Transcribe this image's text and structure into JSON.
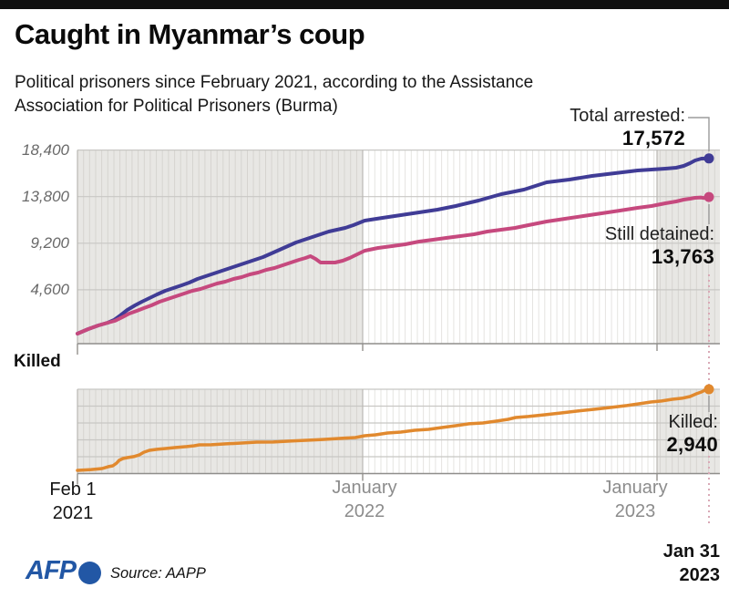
{
  "header": {
    "title": "Caught in Myanmar’s coup",
    "subtitle_lines": [
      "Political prisoners since February 2021, according to the Assistance",
      "Association for Political Prisoners (Burma)"
    ]
  },
  "annotations": {
    "arrested_label": "Total arrested:",
    "arrested_value": "17,572",
    "detained_label": "Still detained:",
    "detained_value": "13,763",
    "killed_label": "Killed:",
    "killed_value": "2,940"
  },
  "sections": {
    "killed_title": "Killed"
  },
  "x_axis": {
    "start": [
      "Feb 1",
      "2021"
    ],
    "jan2022": [
      "January",
      "2022"
    ],
    "jan2023": [
      "January",
      "2023"
    ],
    "final": [
      "Jan 31",
      "2023"
    ]
  },
  "footer": {
    "logo_text": "AFP",
    "source": "Source: AAPP"
  },
  "colors": {
    "arrested_line": "#403c96",
    "detained_line": "#c6497e",
    "killed_line": "#e1892e",
    "afp_blue": "#2257a5"
  },
  "chart_data": {
    "type": "line",
    "title": "Caught in Myanmar's coup",
    "subtitle": "Political prisoners since February 2021, according to the Assistance Association for Political Prisoners (Burma)",
    "x_domain": [
      "Feb 1 2021",
      "Jan 31 2023"
    ],
    "x_gridlines": "weekly",
    "year_boundaries": [
      "January 2022",
      "January 2023"
    ],
    "charts": [
      {
        "name": "political-prisoners",
        "geom": "top",
        "y_ticks": [
          {
            "label": "18,400",
            "value": 18400
          },
          {
            "label": "13,800",
            "value": 13800
          },
          {
            "label": "9,200",
            "value": 9200
          },
          {
            "label": "4,600",
            "value": 4600
          }
        ],
        "series": [
          {
            "name": "Total arrested",
            "color": "#403c96",
            "end_value": 17572,
            "points": [
              [
                0,
                270
              ],
              [
                0.017,
                720
              ],
              [
                0.033,
                1080
              ],
              [
                0.048,
                1350
              ],
              [
                0.058,
                1620
              ],
              [
                0.068,
                2070
              ],
              [
                0.079,
                2610
              ],
              [
                0.091,
                3060
              ],
              [
                0.102,
                3420
              ],
              [
                0.114,
                3780
              ],
              [
                0.126,
                4140
              ],
              [
                0.139,
                4500
              ],
              [
                0.152,
                4770
              ],
              [
                0.165,
                5040
              ],
              [
                0.177,
                5310
              ],
              [
                0.19,
                5670
              ],
              [
                0.203,
                5940
              ],
              [
                0.216,
                6210
              ],
              [
                0.229,
                6480
              ],
              [
                0.242,
                6750
              ],
              [
                0.255,
                7020
              ],
              [
                0.268,
                7290
              ],
              [
                0.281,
                7560
              ],
              [
                0.294,
                7830
              ],
              [
                0.307,
                8190
              ],
              [
                0.32,
                8550
              ],
              [
                0.333,
                8910
              ],
              [
                0.346,
                9270
              ],
              [
                0.359,
                9540
              ],
              [
                0.372,
                9810
              ],
              [
                0.385,
                10080
              ],
              [
                0.398,
                10350
              ],
              [
                0.411,
                10530
              ],
              [
                0.424,
                10710
              ],
              [
                0.437,
                10980
              ],
              [
                0.455,
                11430
              ],
              [
                0.483,
                11700
              ],
              [
                0.512,
                11970
              ],
              [
                0.541,
                12240
              ],
              [
                0.57,
                12510
              ],
              [
                0.599,
                12870
              ],
              [
                0.635,
                13410
              ],
              [
                0.671,
                14040
              ],
              [
                0.707,
                14490
              ],
              [
                0.743,
                15210
              ],
              [
                0.779,
                15480
              ],
              [
                0.815,
                15840
              ],
              [
                0.851,
                16110
              ],
              [
                0.887,
                16380
              ],
              [
                0.909,
                16470
              ],
              [
                0.931,
                16560
              ],
              [
                0.948,
                16650
              ],
              [
                0.96,
                16830
              ],
              [
                0.97,
                17100
              ],
              [
                0.978,
                17370
              ],
              [
                0.988,
                17550
              ],
              [
                1,
                17572
              ]
            ]
          },
          {
            "name": "Still detained",
            "color": "#c6497e",
            "end_value": 13763,
            "points": [
              [
                0,
                270
              ],
              [
                0.017,
                720
              ],
              [
                0.033,
                1080
              ],
              [
                0.048,
                1350
              ],
              [
                0.059,
                1530
              ],
              [
                0.071,
                1890
              ],
              [
                0.082,
                2250
              ],
              [
                0.094,
                2520
              ],
              [
                0.105,
                2790
              ],
              [
                0.117,
                3060
              ],
              [
                0.13,
                3420
              ],
              [
                0.143,
                3690
              ],
              [
                0.156,
                3960
              ],
              [
                0.169,
                4230
              ],
              [
                0.182,
                4500
              ],
              [
                0.195,
                4680
              ],
              [
                0.208,
                4950
              ],
              [
                0.221,
                5220
              ],
              [
                0.234,
                5400
              ],
              [
                0.247,
                5670
              ],
              [
                0.26,
                5850
              ],
              [
                0.273,
                6120
              ],
              [
                0.286,
                6300
              ],
              [
                0.299,
                6570
              ],
              [
                0.312,
                6750
              ],
              [
                0.325,
                7020
              ],
              [
                0.338,
                7290
              ],
              [
                0.351,
                7560
              ],
              [
                0.361,
                7740
              ],
              [
                0.369,
                7920
              ],
              [
                0.377,
                7650
              ],
              [
                0.385,
                7290
              ],
              [
                0.397,
                7290
              ],
              [
                0.408,
                7290
              ],
              [
                0.42,
                7470
              ],
              [
                0.431,
                7740
              ],
              [
                0.443,
                8100
              ],
              [
                0.455,
                8460
              ],
              [
                0.476,
                8730
              ],
              [
                0.498,
                8910
              ],
              [
                0.519,
                9090
              ],
              [
                0.541,
                9360
              ],
              [
                0.563,
                9540
              ],
              [
                0.584,
                9720
              ],
              [
                0.606,
                9900
              ],
              [
                0.628,
                10080
              ],
              [
                0.649,
                10350
              ],
              [
                0.671,
                10530
              ],
              [
                0.693,
                10710
              ],
              [
                0.714,
                10980
              ],
              [
                0.743,
                11340
              ],
              [
                0.772,
                11610
              ],
              [
                0.801,
                11880
              ],
              [
                0.83,
                12150
              ],
              [
                0.859,
                12420
              ],
              [
                0.887,
                12690
              ],
              [
                0.909,
                12870
              ],
              [
                0.931,
                13140
              ],
              [
                0.948,
                13320
              ],
              [
                0.96,
                13500
              ],
              [
                0.97,
                13590
              ],
              [
                0.978,
                13680
              ],
              [
                0.987,
                13720
              ],
              [
                0.993,
                13660
              ],
              [
                1,
                13763
              ]
            ]
          }
        ]
      },
      {
        "name": "killed",
        "geom": "bot",
        "y_ticks": [],
        "series": [
          {
            "name": "Killed",
            "color": "#e1892e",
            "end_value": 2940,
            "points": [
              [
                0,
                110
              ],
              [
                0.022,
                140
              ],
              [
                0.039,
                175
              ],
              [
                0.049,
                240
              ],
              [
                0.056,
                270
              ],
              [
                0.062,
                365
              ],
              [
                0.066,
                460
              ],
              [
                0.072,
                525
              ],
              [
                0.079,
                555
              ],
              [
                0.089,
                590
              ],
              [
                0.098,
                650
              ],
              [
                0.105,
                745
              ],
              [
                0.114,
                810
              ],
              [
                0.126,
                845
              ],
              [
                0.14,
                875
              ],
              [
                0.154,
                905
              ],
              [
                0.173,
                940
              ],
              [
                0.185,
                970
              ],
              [
                0.193,
                1000
              ],
              [
                0.212,
                1005
              ],
              [
                0.235,
                1035
              ],
              [
                0.26,
                1065
              ],
              [
                0.284,
                1095
              ],
              [
                0.31,
                1100
              ],
              [
                0.336,
                1130
              ],
              [
                0.362,
                1160
              ],
              [
                0.388,
                1190
              ],
              [
                0.414,
                1225
              ],
              [
                0.44,
                1255
              ],
              [
                0.455,
                1320
              ],
              [
                0.472,
                1350
              ],
              [
                0.491,
                1415
              ],
              [
                0.512,
                1445
              ],
              [
                0.534,
                1510
              ],
              [
                0.556,
                1540
              ],
              [
                0.577,
                1605
              ],
              [
                0.599,
                1670
              ],
              [
                0.62,
                1735
              ],
              [
                0.642,
                1765
              ],
              [
                0.664,
                1830
              ],
              [
                0.682,
                1890
              ],
              [
                0.694,
                1955
              ],
              [
                0.714,
                1990
              ],
              [
                0.74,
                2050
              ],
              [
                0.766,
                2115
              ],
              [
                0.792,
                2180
              ],
              [
                0.818,
                2240
              ],
              [
                0.844,
                2305
              ],
              [
                0.87,
                2370
              ],
              [
                0.89,
                2435
              ],
              [
                0.908,
                2495
              ],
              [
                0.925,
                2530
              ],
              [
                0.942,
                2590
              ],
              [
                0.957,
                2625
              ],
              [
                0.97,
                2685
              ],
              [
                0.98,
                2780
              ],
              [
                0.988,
                2845
              ],
              [
                0.994,
                2910
              ],
              [
                1,
                2940
              ]
            ]
          }
        ]
      }
    ]
  }
}
